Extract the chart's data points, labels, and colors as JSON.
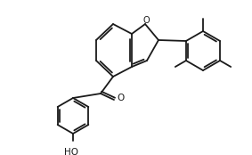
{
  "background_color": "#ffffff",
  "line_color": "#1a1a1a",
  "line_width": 1.3,
  "figsize": [
    2.83,
    1.74
  ],
  "dpi": 100,
  "xlim": [
    0,
    283
  ],
  "ylim": [
    0,
    174
  ]
}
